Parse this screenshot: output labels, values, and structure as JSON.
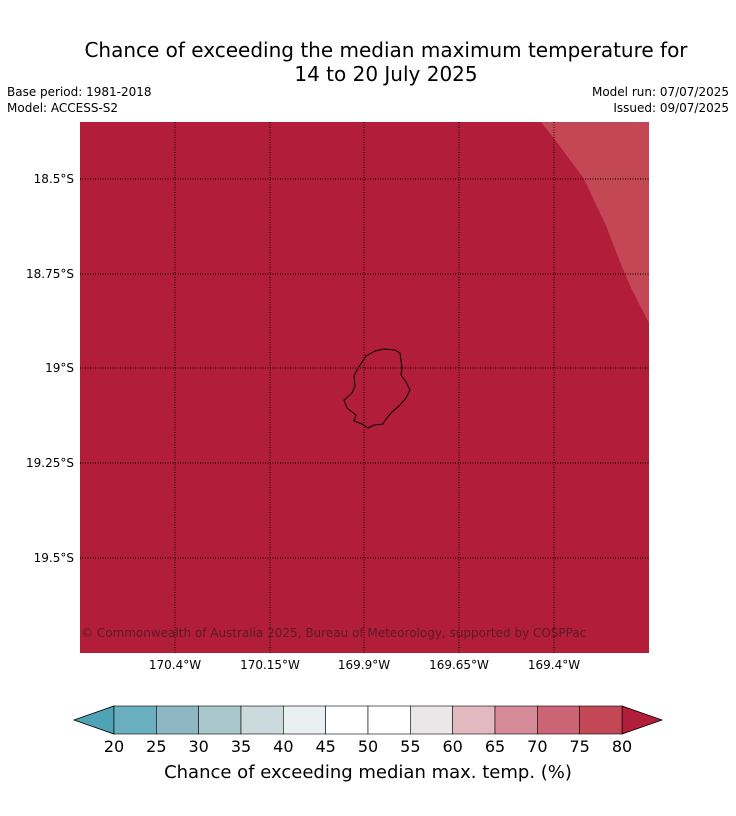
{
  "title": {
    "line1": "Chance of exceeding the median maximum temperature for",
    "line2": "14 to 20 July 2025"
  },
  "meta": {
    "base_period": "Base period: 1981-2018",
    "model": "Model: ACCESS-S2",
    "model_run": "Model run: 07/07/2025",
    "issued": "Issued: 09/07/2025"
  },
  "map": {
    "background_color": "#b21e39",
    "region_colors": {
      "75_80": "#c34755"
    },
    "lat_labels": [
      "18.5°S",
      "18.75°S",
      "19°S",
      "19.25°S",
      "19.5°S"
    ],
    "lon_labels": [
      "170.4°W",
      "170.15°W",
      "169.9°W",
      "169.65°W",
      "169.4°W"
    ],
    "copyright": "© Commonwealth of Australia 2025, Bureau of Meteorology, supported by COSPPac"
  },
  "colorbar": {
    "title": "Chance of exceeding median max. temp. (%)",
    "ticks": [
      "20",
      "25",
      "30",
      "35",
      "40",
      "45",
      "50",
      "55",
      "60",
      "65",
      "70",
      "75",
      "80"
    ],
    "low_extend_color": "#4ea3b6",
    "high_extend_color": "#b21e39",
    "bin_colors": [
      "#6aafc0",
      "#8cb7c3",
      "#a9c7cc",
      "#c9d9dc",
      "#e8f0f1",
      "#ffffff",
      "#ffffff",
      "#e9e7e8",
      "#e1b9bf",
      "#d68c98",
      "#cb6474",
      "#c34755"
    ]
  }
}
